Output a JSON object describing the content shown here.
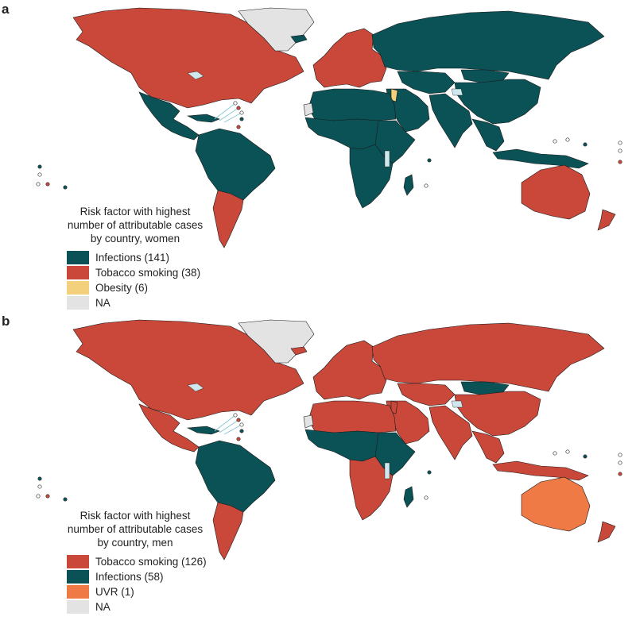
{
  "colors": {
    "infections": "#0b5257",
    "tobacco": "#c9483a",
    "obesity": "#f2d07c",
    "uvr": "#f07a46",
    "na": "#e3e3e3",
    "lake": "#cfe8ee"
  },
  "panels": [
    {
      "letter": "a",
      "legend_title": "Risk factor with highest\nnumber of attributable cases\nby country, women",
      "legend_items": [
        {
          "label": "Infections (141)",
          "color": "#0b5257"
        },
        {
          "label": "Tobacco smoking (38)",
          "color": "#c9483a"
        },
        {
          "label": "Obesity (6)",
          "color": "#f2d07c"
        },
        {
          "label": "NA",
          "color": "#e3e3e3"
        }
      ],
      "region_colors": {
        "north_america": "tobacco",
        "greenland": "na",
        "central_america": "infections",
        "caribbean": "infections",
        "south_america_north": "infections",
        "south_america_south": "tobacco",
        "europe": "tobacco",
        "russia": "infections",
        "central_asia": "infections",
        "middle_east": "infections",
        "levant": "obesity",
        "north_africa": "infections",
        "western_sahara": "na",
        "sub_saharan_africa": "infections",
        "east_africa": "infections",
        "southern_africa": "infections",
        "madagascar": "infections",
        "south_asia": "infections",
        "east_asia": "infections",
        "mongolia": "infections",
        "southeast_asia": "infections",
        "indonesia": "infections",
        "australia": "tobacco",
        "new_zealand": "tobacco",
        "iceland": "infections"
      }
    },
    {
      "letter": "b",
      "legend_title": "Risk factor with highest\nnumber of attributable cases\nby country, men",
      "legend_items": [
        {
          "label": "Tobacco smoking (126)",
          "color": "#c9483a"
        },
        {
          "label": "Infections (58)",
          "color": "#0b5257"
        },
        {
          "label": "UVR (1)",
          "color": "#f07a46"
        },
        {
          "label": "NA",
          "color": "#e3e3e3"
        }
      ],
      "region_colors": {
        "north_america": "tobacco",
        "greenland": "na",
        "central_america": "tobacco",
        "caribbean": "infections",
        "south_america_north": "infections",
        "south_america_south": "tobacco",
        "europe": "tobacco",
        "russia": "tobacco",
        "central_asia": "tobacco",
        "middle_east": "tobacco",
        "levant": "tobacco",
        "north_africa": "tobacco",
        "western_sahara": "na",
        "sub_saharan_africa": "infections",
        "east_africa": "infections",
        "southern_africa": "tobacco",
        "madagascar": "infections",
        "south_asia": "tobacco",
        "east_asia": "tobacco",
        "mongolia": "infections",
        "southeast_asia": "tobacco",
        "indonesia": "tobacco",
        "australia": "uvr",
        "new_zealand": "tobacco",
        "iceland": "tobacco"
      }
    }
  ]
}
